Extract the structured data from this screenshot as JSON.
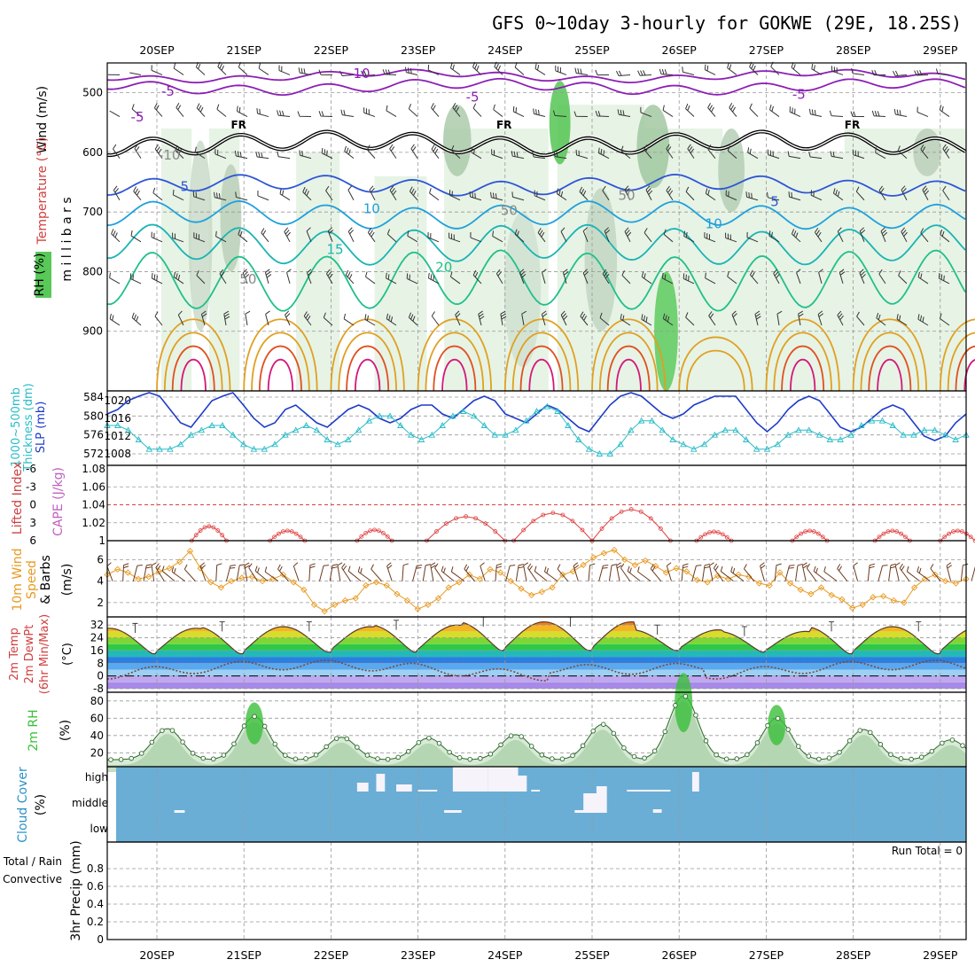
{
  "title": "GFS 0~10day 3-hourly for GOKWE (29E, 18.25S)",
  "dates": [
    "20SEP",
    "21SEP",
    "22SEP",
    "23SEP",
    "24SEP",
    "25SEP",
    "26SEP",
    "27SEP",
    "28SEP",
    "29SEP"
  ],
  "colors": {
    "rh_green": "#3bbf3b",
    "temp_purple": "#8c1fb5",
    "temp_blue": "#2e55d6",
    "temp_lightblue": "#1fa0dc",
    "temp_cyan": "#19b4b4",
    "temp_teal": "#1fc08a",
    "temp_orange": "#e0a020",
    "temp_red": "#e05020",
    "temp_magenta": "#d4187a",
    "slp_blue": "#1e3cc8",
    "thick_cyan": "#2abcc8",
    "cape_red": "#e04040",
    "wind_orange": "#e89a20",
    "barb_brown": "#6b3a1e",
    "cloud_blue": "#6aaed6",
    "cloud_white": "#f6f3fa"
  },
  "panel_labels": {
    "upper": {
      "wind": "Wind (m/s)",
      "temp": "Temperature (°C)",
      "rh": "RH (%)",
      "y": "m i l l i b a r s"
    },
    "slp": {
      "left1": "1000~500mb",
      "left2": "Thickness (dm)",
      "right": "SLP (mb)"
    },
    "cape": {
      "left": "Lifted Index",
      "right": "CAPE (J/kg)"
    },
    "wind10": {
      "l1": "10m Wind",
      "l2": "Speed",
      "l3": "& Barbs",
      "unit": "(m/s)"
    },
    "temp2m": {
      "l1": "2m Temp",
      "l2": "2m DewPt",
      "l3": "(6hr Min/Max)",
      "unit": "(°C)"
    },
    "rh2m": {
      "l1": "2m RH",
      "unit": "(%)"
    },
    "cloud": {
      "l1": "Cloud Cover",
      "unit": "(%)",
      "high": "high",
      "middle": "middle",
      "low": "low"
    },
    "precip": {
      "l1": "Total / Rain",
      "l2": "Convective",
      "l3": "3hr Precip (mm)",
      "run_total": "Run Total = 0"
    }
  },
  "chart_data": [
    {
      "type": "contour",
      "name_panel": "upper-air",
      "yaxis": {
        "label": "m i l l i b a r s",
        "ticks": [
          500,
          600,
          700,
          800,
          900
        ],
        "range": [
          450,
          1000
        ]
      },
      "freezing_label": "FR",
      "contour_labels": [
        "-10",
        "-5",
        "-5",
        "-5",
        "5",
        "5",
        "10",
        "10",
        "15",
        "20",
        "-10",
        "-5",
        "50",
        "50",
        "50"
      ],
      "temp_levels": [
        -10,
        -5,
        0,
        5,
        10,
        15,
        20,
        25
      ]
    },
    {
      "type": "line",
      "name_panel": "slp-thickness",
      "left_ticks": [
        572,
        576,
        580,
        584
      ],
      "right_ticks": [
        1008,
        1012,
        1016,
        1020
      ],
      "slp": [
        1017,
        1018,
        1020,
        1021,
        1022,
        1021,
        1018,
        1015,
        1014,
        1017,
        1020,
        1021,
        1022,
        1019,
        1016,
        1014,
        1015,
        1018,
        1019,
        1017,
        1015,
        1014,
        1016,
        1018,
        1019,
        1018,
        1016,
        1015,
        1016,
        1018,
        1019,
        1019,
        1017,
        1016,
        1018,
        1020,
        1021,
        1020,
        1017,
        1016,
        1015,
        1017,
        1019,
        1018,
        1016,
        1014,
        1013,
        1016,
        1019,
        1021,
        1022,
        1021,
        1019,
        1017,
        1016,
        1017,
        1019,
        1020,
        1021,
        1021,
        1021,
        1018,
        1015,
        1013,
        1015,
        1018,
        1020,
        1021,
        1020,
        1017,
        1014,
        1013,
        1014,
        1016,
        1018,
        1019,
        1018,
        1015,
        1012,
        1011,
        1012,
        1015,
        1017
      ],
      "thickness": [
        578,
        578,
        577,
        575,
        573,
        573,
        573,
        574,
        576,
        577,
        578,
        578,
        576,
        574,
        573,
        573,
        574,
        576,
        577,
        578,
        577,
        575,
        574,
        575,
        577,
        579,
        580,
        580,
        578,
        576,
        575,
        576,
        578,
        580,
        581,
        580,
        578,
        576,
        576,
        577,
        579,
        581,
        582,
        581,
        578,
        575,
        573,
        572,
        572,
        574,
        577,
        579,
        579,
        577,
        575,
        574,
        573,
        574,
        576,
        577,
        577,
        575,
        573,
        573,
        574,
        576,
        577,
        577,
        576,
        575,
        575,
        576,
        578,
        579,
        579,
        578,
        576,
        576,
        577,
        577,
        576,
        575,
        576
      ]
    },
    {
      "type": "line",
      "name_panel": "cape-li",
      "left_ticks": [
        "-6",
        "-3",
        "0",
        "3",
        "6"
      ],
      "right_ticks": [
        "1",
        "1.02",
        "1.04",
        "1.06",
        "1.08"
      ],
      "cape_bumps": [
        [
          0.6,
          1.016
        ],
        [
          1.5,
          1.011
        ],
        [
          2.5,
          1.012
        ],
        [
          3.55,
          1.027
        ],
        [
          4.55,
          1.031
        ],
        [
          5.45,
          1.035
        ],
        [
          6.4,
          1.01
        ],
        [
          7.5,
          1.011
        ],
        [
          8.45,
          1.011
        ],
        [
          9.2,
          1.011
        ]
      ]
    },
    {
      "type": "line",
      "name_panel": "wind10m",
      "yticks": [
        2,
        4,
        6
      ],
      "speed": [
        4.6,
        5.1,
        4.8,
        4.2,
        4.4,
        4.9,
        5.2,
        5.8,
        6.8,
        5.2,
        3.9,
        3.4,
        4.0,
        4.3,
        4.4,
        4.0,
        4.2,
        4.6,
        3.9,
        3.2,
        1.8,
        1.2,
        1.8,
        2.2,
        2.4,
        3.6,
        3.9,
        3.6,
        2.8,
        2.2,
        1.4,
        1.8,
        2.4,
        3.4,
        3.9,
        4.6,
        4.2,
        5.1,
        4.8,
        4.0,
        3.3,
        2.7,
        3.0,
        3.4,
        4.6,
        4.9,
        5.5,
        6.2,
        6.6,
        6.9,
        6.0,
        5.5,
        5.9,
        5.4,
        4.8,
        5.2,
        4.9,
        4.1,
        3.9,
        4.5,
        4.2,
        4.6,
        4.4,
        3.8,
        3.6,
        4.8,
        3.8,
        3.2,
        2.8,
        3.4,
        2.7,
        2.3,
        1.5,
        1.8,
        2.5,
        2.6,
        2.2,
        2.0,
        3.4,
        4.2,
        4.6,
        4.0,
        3.8,
        4.2
      ]
    },
    {
      "type": "area",
      "name_panel": "temp2m",
      "yticks": [
        -8,
        0,
        8,
        16,
        24,
        32
      ],
      "tmax": [
        30,
        31,
        31,
        32,
        34,
        34,
        29,
        28,
        31,
        31
      ],
      "tmin": [
        14,
        14,
        15,
        15,
        16,
        16,
        16,
        15,
        14,
        14
      ],
      "dewpt_range": [
        -2,
        10
      ]
    },
    {
      "type": "area",
      "name_panel": "rh2m",
      "yticks": [
        20,
        40,
        60,
        80
      ],
      "peaks": [
        [
          0.12,
          48
        ],
        [
          1.12,
          62
        ],
        [
          2.12,
          38
        ],
        [
          3.12,
          37
        ],
        [
          4.12,
          41
        ],
        [
          5.12,
          53
        ],
        [
          6.05,
          86
        ],
        [
          7.12,
          60
        ],
        [
          8.12,
          47
        ],
        [
          9.12,
          35
        ]
      ]
    },
    {
      "type": "bar",
      "name_panel": "cloud",
      "levels": [
        "high",
        "middle",
        "low"
      ]
    },
    {
      "type": "bar",
      "name_panel": "precip",
      "yticks": [
        "0",
        "0.2",
        "0.4",
        "0.6",
        "0.8"
      ],
      "ylim": [
        0,
        1
      ],
      "run_total": 0
    }
  ]
}
